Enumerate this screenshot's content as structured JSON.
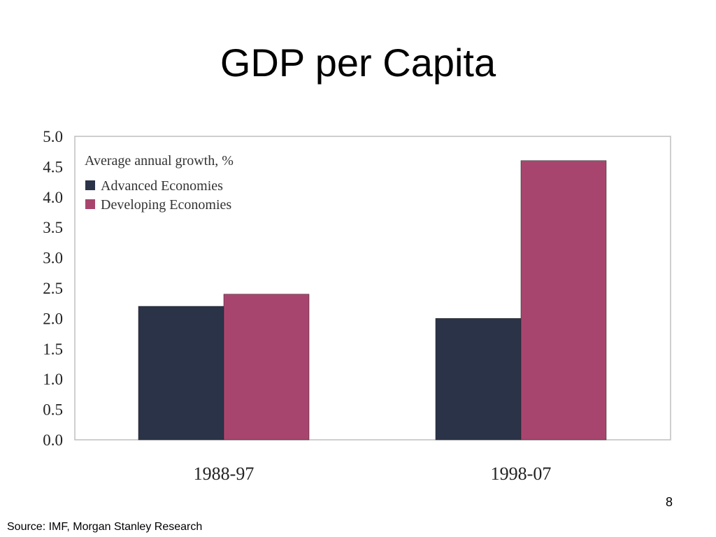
{
  "slide": {
    "title": "GDP per Capita",
    "page_number": "8",
    "source": "Source: IMF, Morgan Stanley Research"
  },
  "chart_data": {
    "type": "bar",
    "title": "",
    "xlabel": "",
    "ylabel": "",
    "legend_title": "Average annual growth, %",
    "legend_position": "top-left",
    "categories": [
      "1988-97",
      "1998-07"
    ],
    "series": [
      {
        "name": "Advanced Economies",
        "values": [
          2.2,
          2.0
        ],
        "color": "#2b3349"
      },
      {
        "name": "Developing Economies",
        "values": [
          2.4,
          4.6
        ],
        "color": "#a8456f"
      }
    ],
    "yticks": [
      "0.0",
      "0.5",
      "1.0",
      "1.5",
      "2.0",
      "2.5",
      "3.0",
      "3.5",
      "4.0",
      "4.5",
      "5.0"
    ],
    "ylim": [
      0,
      5
    ],
    "grid": false
  }
}
